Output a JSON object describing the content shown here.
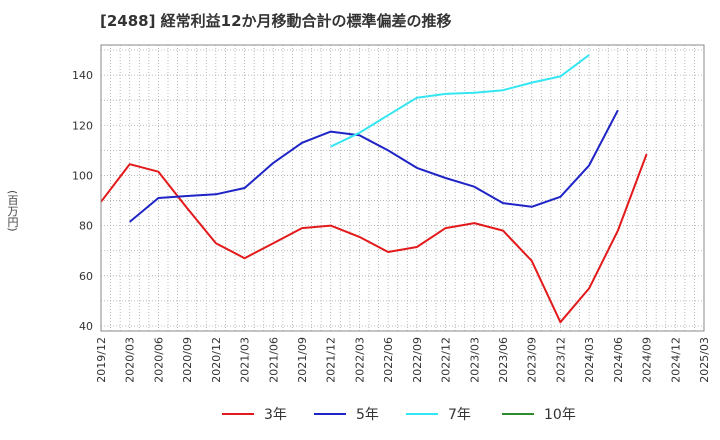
{
  "chart_data": {
    "type": "line",
    "title": "[2488]  経常利益12か月移動合計の標準偏差の推移",
    "ylabel": "(百万円)",
    "xlabel": "",
    "ylim": [
      38,
      152
    ],
    "yticks": [
      40,
      60,
      80,
      100,
      120,
      140
    ],
    "x": [
      "2019/12",
      "2020/03",
      "2020/06",
      "2020/09",
      "2020/12",
      "2021/03",
      "2021/06",
      "2021/09",
      "2021/12",
      "2022/03",
      "2022/06",
      "2022/09",
      "2022/12",
      "2023/03",
      "2023/06",
      "2023/09",
      "2023/12",
      "2024/03",
      "2024/06",
      "2024/09",
      "2024/12",
      "2025/03"
    ],
    "grid": true,
    "legend_position": "bottom",
    "series": [
      {
        "name": "3年",
        "color": "#e31a1c",
        "values": [
          89.5,
          104.5,
          101.5,
          87,
          73,
          67,
          73,
          79,
          80,
          75.5,
          69.5,
          71.5,
          79,
          81,
          78,
          66,
          41.5,
          55,
          78,
          108.5,
          null,
          null
        ]
      },
      {
        "name": "5年",
        "color": "#1f24c6",
        "values": [
          null,
          81.5,
          91,
          91.8,
          92.5,
          95,
          105,
          113,
          117.5,
          116,
          110,
          103,
          99,
          95.5,
          89,
          87.5,
          91.5,
          104,
          126,
          null,
          null,
          null
        ]
      },
      {
        "name": "7年",
        "color": "#33e6f2",
        "values": [
          null,
          null,
          null,
          null,
          null,
          null,
          null,
          null,
          111.5,
          117,
          124,
          131,
          132.5,
          133,
          134,
          137,
          139.5,
          148,
          null,
          null,
          null,
          null
        ]
      },
      {
        "name": "10年",
        "color": "#2e8b2e",
        "values": [
          null,
          null,
          null,
          null,
          null,
          null,
          null,
          null,
          null,
          null,
          null,
          null,
          null,
          null,
          null,
          null,
          null,
          null,
          null,
          null,
          null,
          null
        ]
      }
    ]
  }
}
